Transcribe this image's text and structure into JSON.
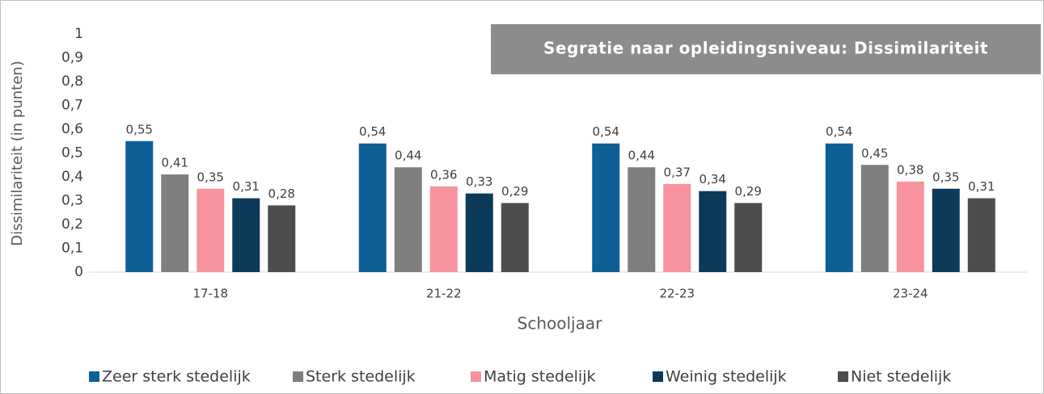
{
  "chart_data": {
    "type": "bar",
    "title": "Segratie naar opleidingsniveau: Dissimilariteit",
    "x_label": "Schooljaar",
    "y_label": "Dissimilariteit (in punten)",
    "categories": [
      "17-18",
      "21-22",
      "22-23",
      "23-24"
    ],
    "series": [
      {
        "name": "Zeer sterk stedelijk",
        "color": "#0e5f96",
        "values": [
          0.55,
          0.54,
          0.54,
          0.54
        ],
        "value_labels": [
          "0,55",
          "0,54",
          "0,54",
          "0,54"
        ]
      },
      {
        "name": "Sterk stedelijk",
        "color": "#7f7f7f",
        "values": [
          0.41,
          0.44,
          0.44,
          0.45
        ],
        "value_labels": [
          "0,41",
          "0,44",
          "0,44",
          "0,45"
        ]
      },
      {
        "name": "Matig stedelijk",
        "color": "#f7939f",
        "values": [
          0.35,
          0.36,
          0.37,
          0.38
        ],
        "value_labels": [
          "0,35",
          "0,36",
          "0,37",
          "0,38"
        ]
      },
      {
        "name": "Weinig stedelijk",
        "color": "#0c3a5a",
        "values": [
          0.31,
          0.33,
          0.34,
          0.35
        ],
        "value_labels": [
          "0,31",
          "0,33",
          "0,34",
          "0,35"
        ]
      },
      {
        "name": "Niet stedelijk",
        "color": "#4d4d4d",
        "values": [
          0.28,
          0.29,
          0.29,
          0.31
        ],
        "value_labels": [
          "0,28",
          "0,29",
          "0,29",
          "0,31"
        ]
      }
    ],
    "ylim": [
      0,
      1
    ],
    "yticks": [
      0,
      {
        "value": 0.1,
        "label": "0,1"
      },
      {
        "value": 0.2,
        "label": "0,2"
      },
      {
        "value": 0.3,
        "label": "0,3"
      },
      {
        "value": 0.4,
        "label": "0,4"
      },
      {
        "value": 0.5,
        "label": "0,5"
      },
      {
        "value": 0.6,
        "label": "0,6"
      },
      {
        "value": 0.7,
        "label": "0,7"
      },
      {
        "value": 0.8,
        "label": "0,8"
      },
      {
        "value": 0.9,
        "label": "0,9"
      },
      1
    ],
    "legend": "bottom"
  }
}
